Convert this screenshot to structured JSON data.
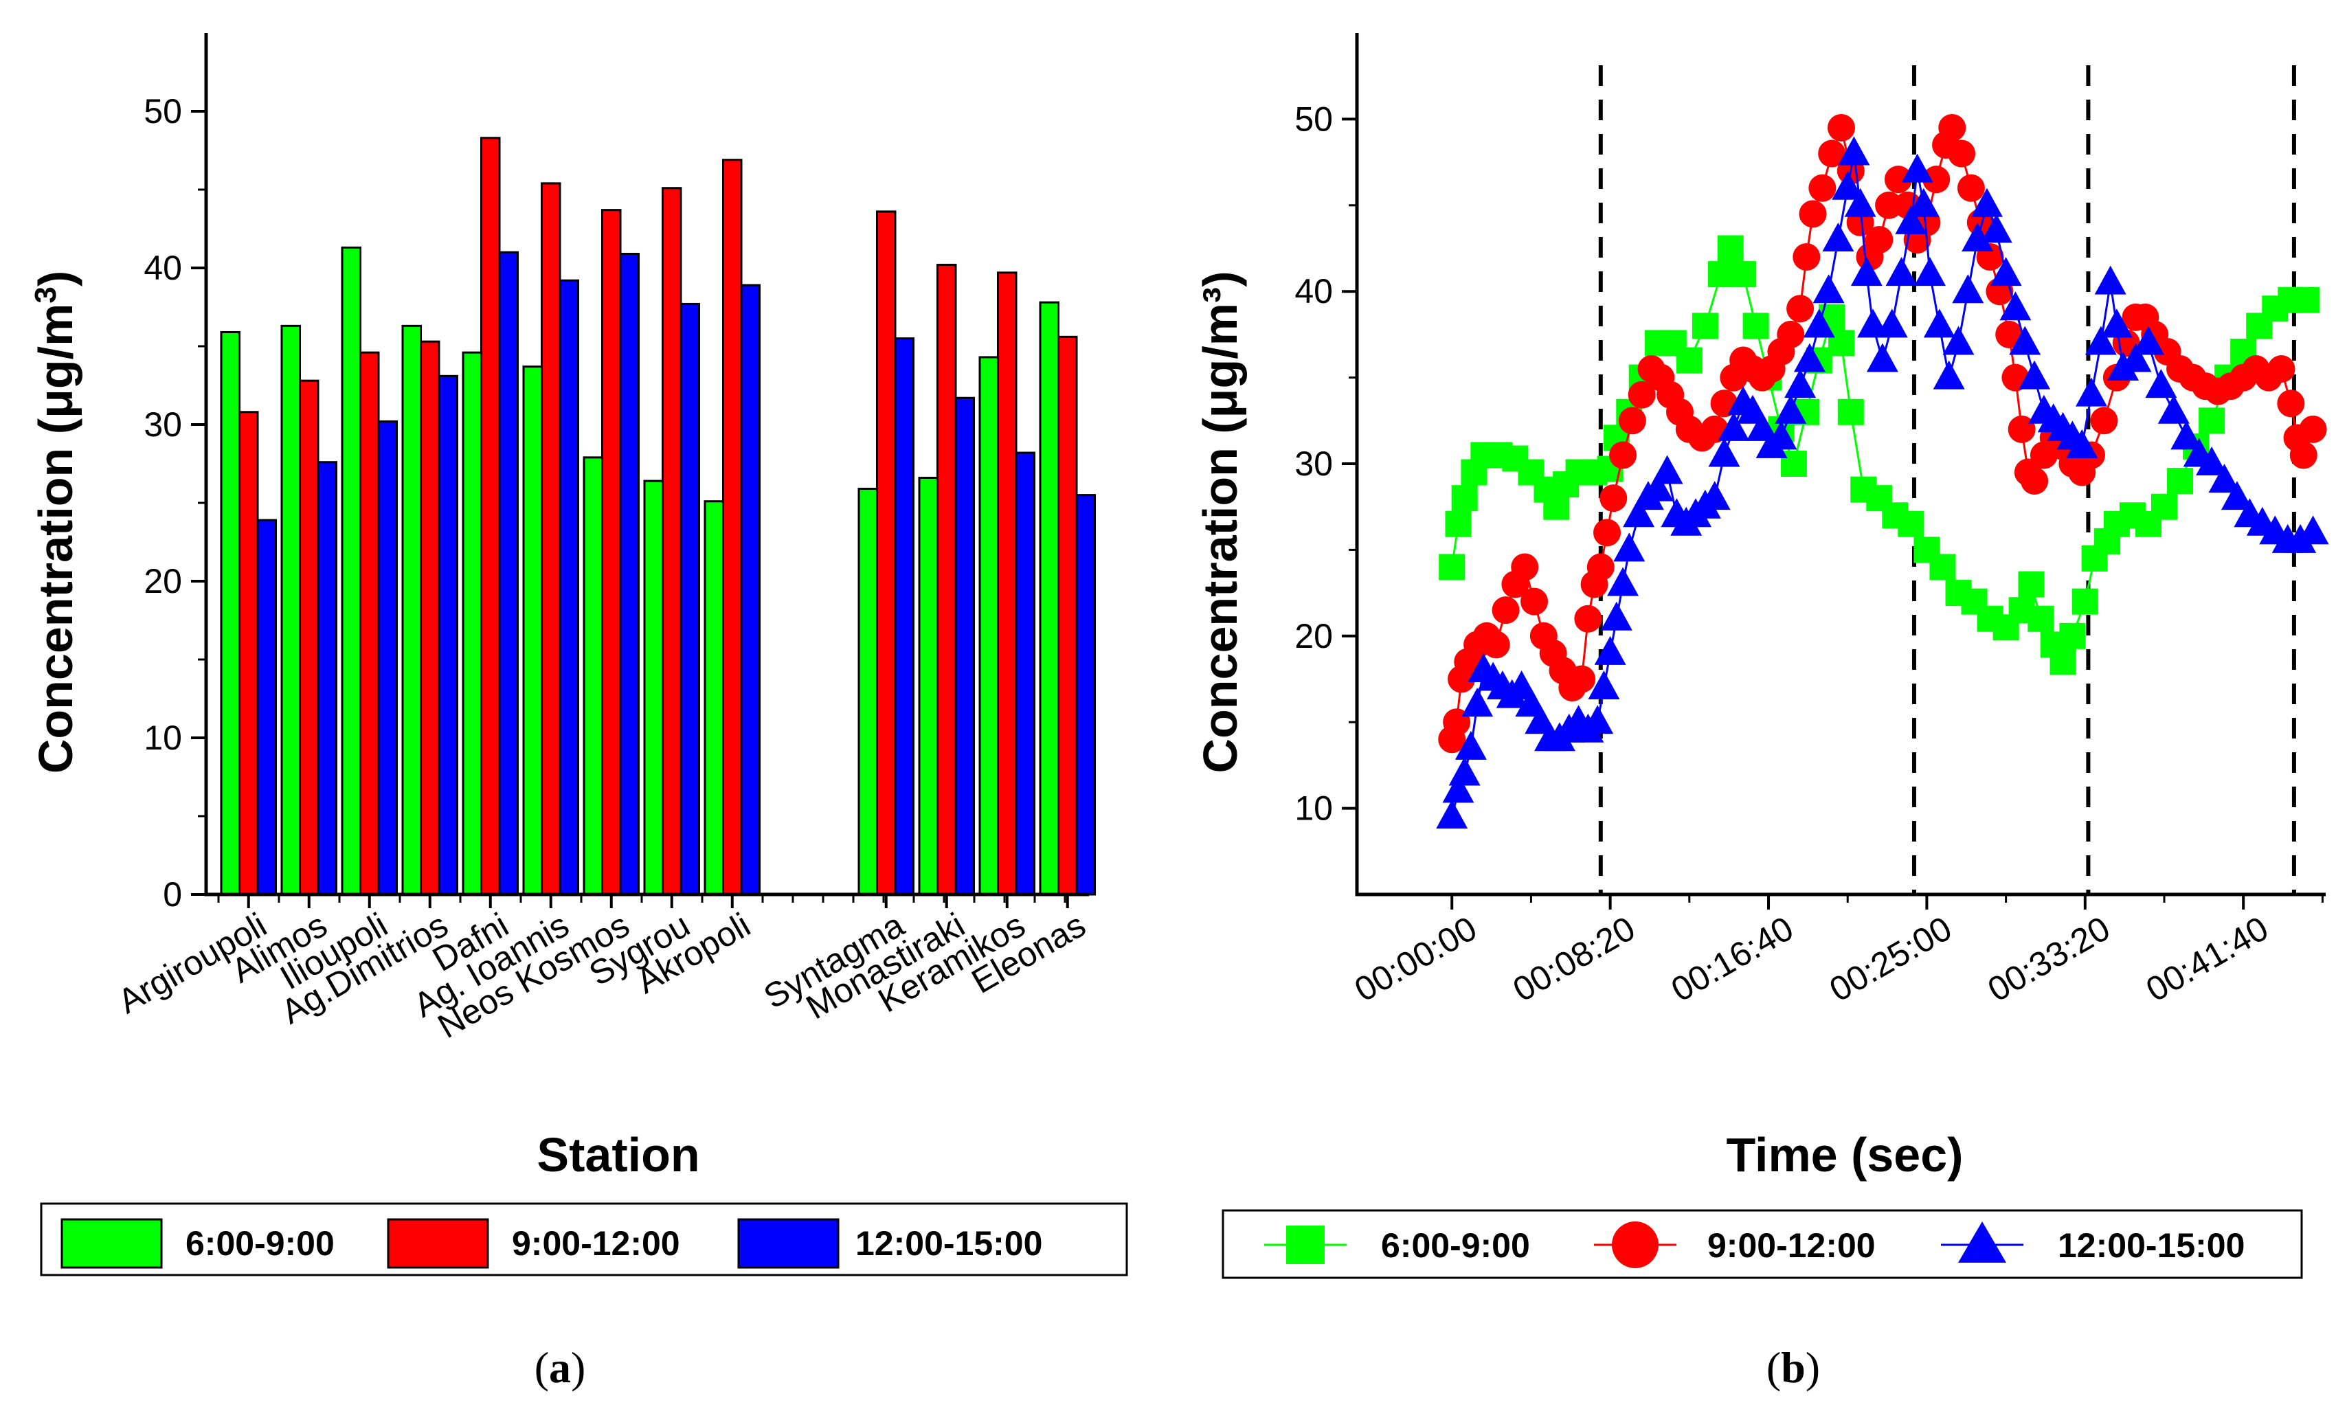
{
  "colors": {
    "green": "#00ff00",
    "red": "#ff0000",
    "blue": "#0000ff"
  },
  "chart_data": [
    {
      "type": "bar",
      "panel": "a",
      "caption_open": "(",
      "caption_letter": "a",
      "caption_close": ")",
      "categories": [
        "Argiroupoli",
        "Alimos",
        "Ilioupoli",
        "Ag.Dimitrios",
        "Dafni",
        "Ag. Ioannis",
        "Neos Kosmos",
        "Sygrou",
        "Akropoli",
        "Syntagma",
        "Monastiraki",
        "Keramikos",
        "Eleonas"
      ],
      "series": [
        {
          "name": "6:00-9:00",
          "color": "green",
          "values": [
            35.9,
            36.3,
            41.3,
            36.3,
            34.6,
            33.7,
            27.9,
            26.4,
            25.1,
            25.9,
            26.6,
            34.3,
            37.8
          ]
        },
        {
          "name": "9:00-12:00",
          "color": "red",
          "values": [
            30.8,
            32.8,
            34.6,
            35.3,
            48.3,
            45.4,
            43.7,
            45.1,
            46.9,
            43.6,
            40.2,
            39.7,
            35.6
          ]
        },
        {
          "name": "12:00-15:00",
          "color": "blue",
          "values": [
            23.9,
            27.6,
            30.2,
            33.1,
            41.0,
            39.2,
            40.9,
            37.7,
            38.9,
            35.5,
            31.7,
            28.2,
            25.5
          ]
        }
      ],
      "xlabel": "Station",
      "ylabel": "Concentration (μg/m",
      "ylabel_sup": "3",
      "ylabel_close": ")",
      "ylim": [
        0,
        55
      ],
      "yticks": [
        "0",
        "10",
        "20",
        "30",
        "40",
        "50"
      ],
      "legend": [
        "6:00-9:00",
        "9:00-12:00",
        "12:00-15:00"
      ],
      "legend_position": "bottom"
    },
    {
      "type": "line",
      "panel": "b",
      "caption_open": "(",
      "caption_letter": "b",
      "caption_close": ")",
      "xlabel": "Time (sec)",
      "ylabel": "Concentration (μg/m³)",
      "xlim": [
        -300,
        2760
      ],
      "ylim": [
        5,
        55
      ],
      "xticks": [
        0,
        500,
        1000,
        1500,
        2000,
        2500
      ],
      "xtick_labels": [
        "00:00:00",
        "00:08:20",
        "00:16:40",
        "00:25:00",
        "00:33:20",
        "00:41:40"
      ],
      "yticks": [
        "10",
        "20",
        "30",
        "40",
        "50"
      ],
      "vlines": [
        470,
        1460,
        2010,
        2660
      ],
      "legend": [
        "6:00-9:00",
        "9:00-12:00",
        "12:00-15:00"
      ],
      "legend_position": "bottom",
      "series": [
        {
          "name": "6:00-9:00",
          "color": "green",
          "marker": "square",
          "points": [
            [
              0,
              24
            ],
            [
              20,
              26.5
            ],
            [
              40,
              28
            ],
            [
              70,
              29.5
            ],
            [
              100,
              30.5
            ],
            [
              150,
              30.5
            ],
            [
              200,
              30.3
            ],
            [
              250,
              29.5
            ],
            [
              300,
              28.5
            ],
            [
              330,
              27.5
            ],
            [
              360,
              28.8
            ],
            [
              400,
              29.5
            ],
            [
              450,
              29.5
            ],
            [
              500,
              29.7
            ],
            [
              520,
              31.5
            ],
            [
              560,
              33
            ],
            [
              600,
              35
            ],
            [
              650,
              37
            ],
            [
              700,
              37
            ],
            [
              750,
              36
            ],
            [
              800,
              38
            ],
            [
              850,
              41
            ],
            [
              880,
              42.5
            ],
            [
              920,
              41
            ],
            [
              960,
              38
            ],
            [
              1000,
              35
            ],
            [
              1040,
              32
            ],
            [
              1080,
              30
            ],
            [
              1120,
              33
            ],
            [
              1160,
              36
            ],
            [
              1200,
              38.5
            ],
            [
              1230,
              37
            ],
            [
              1260,
              33
            ],
            [
              1300,
              28.5
            ],
            [
              1350,
              28
            ],
            [
              1400,
              27
            ],
            [
              1450,
              26.5
            ],
            [
              1500,
              25
            ],
            [
              1550,
              24
            ],
            [
              1600,
              22.5
            ],
            [
              1650,
              22
            ],
            [
              1700,
              21
            ],
            [
              1750,
              20.5
            ],
            [
              1800,
              21.5
            ],
            [
              1830,
              23
            ],
            [
              1860,
              21
            ],
            [
              1900,
              19.5
            ],
            [
              1930,
              18.5
            ],
            [
              1960,
              20
            ],
            [
              2000,
              22
            ],
            [
              2030,
              24.5
            ],
            [
              2070,
              25.5
            ],
            [
              2100,
              26.5
            ],
            [
              2150,
              27
            ],
            [
              2200,
              26.5
            ],
            [
              2250,
              27.5
            ],
            [
              2300,
              29
            ],
            [
              2350,
              31
            ],
            [
              2400,
              32.5
            ],
            [
              2450,
              35
            ],
            [
              2500,
              36.5
            ],
            [
              2550,
              38
            ],
            [
              2600,
              39
            ],
            [
              2650,
              39.5
            ],
            [
              2700,
              39.5
            ]
          ]
        },
        {
          "name": "9:00-12:00",
          "color": "red",
          "marker": "circle",
          "points": [
            [
              0,
              14
            ],
            [
              15,
              15
            ],
            [
              30,
              17.5
            ],
            [
              50,
              18.5
            ],
            [
              80,
              19.5
            ],
            [
              110,
              20
            ],
            [
              140,
              19.5
            ],
            [
              170,
              21.5
            ],
            [
              200,
              23
            ],
            [
              230,
              24
            ],
            [
              260,
              22
            ],
            [
              290,
              20
            ],
            [
              320,
              19
            ],
            [
              350,
              18
            ],
            [
              380,
              17
            ],
            [
              410,
              17.5
            ],
            [
              430,
              21
            ],
            [
              450,
              23
            ],
            [
              470,
              24
            ],
            [
              490,
              26
            ],
            [
              510,
              28
            ],
            [
              540,
              30.5
            ],
            [
              570,
              32.5
            ],
            [
              600,
              34
            ],
            [
              630,
              35.5
            ],
            [
              660,
              35
            ],
            [
              690,
              34
            ],
            [
              720,
              33
            ],
            [
              750,
              32
            ],
            [
              790,
              31.5
            ],
            [
              830,
              32
            ],
            [
              860,
              33.5
            ],
            [
              890,
              35
            ],
            [
              920,
              36
            ],
            [
              950,
              35.5
            ],
            [
              980,
              35
            ],
            [
              1010,
              35.5
            ],
            [
              1040,
              36.5
            ],
            [
              1070,
              37.5
            ],
            [
              1100,
              39
            ],
            [
              1120,
              42
            ],
            [
              1140,
              44.5
            ],
            [
              1170,
              46
            ],
            [
              1200,
              48
            ],
            [
              1230,
              49.5
            ],
            [
              1260,
              47
            ],
            [
              1290,
              44
            ],
            [
              1320,
              42
            ],
            [
              1350,
              43
            ],
            [
              1380,
              45
            ],
            [
              1410,
              46.5
            ],
            [
              1440,
              45
            ],
            [
              1470,
              43
            ],
            [
              1500,
              44
            ],
            [
              1530,
              46.5
            ],
            [
              1560,
              48.5
            ],
            [
              1580,
              49.5
            ],
            [
              1610,
              48
            ],
            [
              1640,
              46
            ],
            [
              1670,
              44
            ],
            [
              1700,
              42
            ],
            [
              1730,
              40
            ],
            [
              1760,
              37.5
            ],
            [
              1780,
              35
            ],
            [
              1800,
              32
            ],
            [
              1820,
              29.5
            ],
            [
              1840,
              29
            ],
            [
              1870,
              30.5
            ],
            [
              1900,
              31.5
            ],
            [
              1930,
              31
            ],
            [
              1960,
              30
            ],
            [
              1990,
              29.5
            ],
            [
              2020,
              30.5
            ],
            [
              2060,
              32.5
            ],
            [
              2100,
              35
            ],
            [
              2130,
              37
            ],
            [
              2160,
              38.5
            ],
            [
              2190,
              38.5
            ],
            [
              2220,
              37.5
            ],
            [
              2260,
              36.5
            ],
            [
              2300,
              35.5
            ],
            [
              2340,
              35
            ],
            [
              2380,
              34.5
            ],
            [
              2420,
              34.2
            ],
            [
              2460,
              34.5
            ],
            [
              2500,
              35
            ],
            [
              2540,
              35.5
            ],
            [
              2580,
              35
            ],
            [
              2620,
              35.5
            ],
            [
              2650,
              33.5
            ],
            [
              2670,
              31.5
            ],
            [
              2690,
              30.5
            ],
            [
              2720,
              32
            ]
          ]
        },
        {
          "name": "12:00-15:00",
          "color": "blue",
          "marker": "triangle",
          "points": [
            [
              0,
              9.5
            ],
            [
              20,
              11
            ],
            [
              40,
              12
            ],
            [
              60,
              13.5
            ],
            [
              80,
              16
            ],
            [
              100,
              18
            ],
            [
              130,
              17.5
            ],
            [
              160,
              17
            ],
            [
              190,
              16.5
            ],
            [
              220,
              17
            ],
            [
              250,
              16
            ],
            [
              280,
              15
            ],
            [
              310,
              14
            ],
            [
              340,
              14
            ],
            [
              370,
              14.5
            ],
            [
              400,
              15
            ],
            [
              430,
              14.5
            ],
            [
              460,
              15
            ],
            [
              480,
              17
            ],
            [
              500,
              19
            ],
            [
              520,
              21
            ],
            [
              540,
              23
            ],
            [
              560,
              25
            ],
            [
              590,
              27
            ],
            [
              620,
              28
            ],
            [
              650,
              28.5
            ],
            [
              680,
              29.5
            ],
            [
              710,
              27
            ],
            [
              740,
              26.5
            ],
            [
              770,
              27
            ],
            [
              800,
              27.5
            ],
            [
              830,
              28
            ],
            [
              860,
              30.5
            ],
            [
              890,
              32
            ],
            [
              920,
              33.5
            ],
            [
              950,
              33
            ],
            [
              980,
              32
            ],
            [
              1010,
              31
            ],
            [
              1040,
              31.5
            ],
            [
              1070,
              33
            ],
            [
              1100,
              34.5
            ],
            [
              1130,
              36
            ],
            [
              1160,
              38
            ],
            [
              1190,
              40
            ],
            [
              1220,
              43
            ],
            [
              1250,
              46
            ],
            [
              1270,
              48
            ],
            [
              1290,
              45
            ],
            [
              1310,
              41
            ],
            [
              1330,
              38
            ],
            [
              1360,
              36
            ],
            [
              1390,
              38
            ],
            [
              1420,
              41
            ],
            [
              1450,
              44
            ],
            [
              1470,
              47
            ],
            [
              1490,
              45
            ],
            [
              1510,
              41
            ],
            [
              1540,
              38
            ],
            [
              1570,
              35
            ],
            [
              1600,
              37
            ],
            [
              1630,
              40
            ],
            [
              1660,
              43
            ],
            [
              1690,
              45
            ],
            [
              1720,
              43.5
            ],
            [
              1750,
              41
            ],
            [
              1780,
              39
            ],
            [
              1810,
              37
            ],
            [
              1840,
              35
            ],
            [
              1870,
              33
            ],
            [
              1900,
              32.5
            ],
            [
              1930,
              32
            ],
            [
              1960,
              31.5
            ],
            [
              1990,
              31
            ],
            [
              2020,
              34
            ],
            [
              2050,
              37
            ],
            [
              2080,
              40.5
            ],
            [
              2100,
              38
            ],
            [
              2120,
              35.5
            ],
            [
              2160,
              36
            ],
            [
              2200,
              37
            ],
            [
              2240,
              34.5
            ],
            [
              2280,
              33
            ],
            [
              2320,
              31.5
            ],
            [
              2360,
              30.5
            ],
            [
              2400,
              30
            ],
            [
              2440,
              29
            ],
            [
              2480,
              28
            ],
            [
              2520,
              27
            ],
            [
              2560,
              26.5
            ],
            [
              2600,
              26
            ],
            [
              2640,
              25.5
            ],
            [
              2680,
              25.5
            ],
            [
              2720,
              26
            ]
          ]
        }
      ]
    }
  ]
}
